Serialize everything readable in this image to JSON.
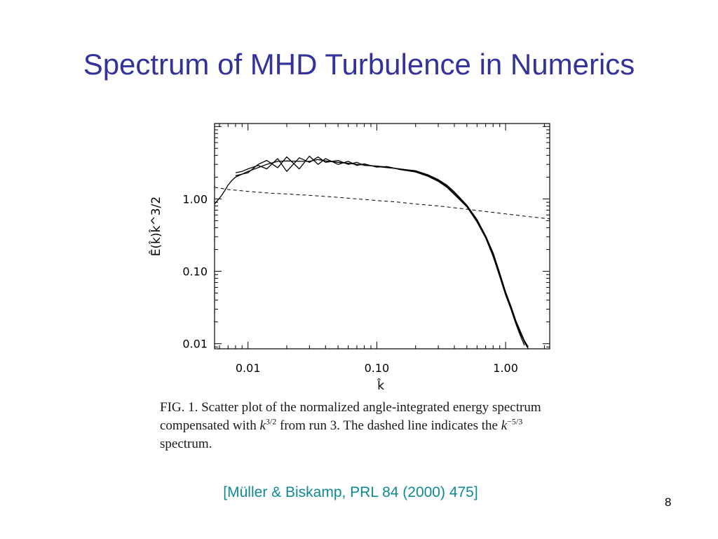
{
  "slide": {
    "title": "Spectrum of MHD Turbulence in Numerics",
    "citation": "[Müller & Biskamp, PRL 84 (2000) 475]",
    "slide_number": "8"
  },
  "caption": {
    "part1": "FIG. 1.  Scatter plot of the normalized angle-integrated energy spectrum compensated with ",
    "math1_base": "k",
    "math1_exp": "3/2",
    "part2": " from run 3.  The dashed line indicates the ",
    "math2_base": "k",
    "math2_exp": "−5/3",
    "part3": " spectrum."
  },
  "chart_data": {
    "type": "line",
    "x_scale": "log",
    "y_scale": "log",
    "xlabel": "k̂",
    "ylabel": "Ê(k̂)k̂^3/2",
    "xlim": [
      0.0055,
      2.2
    ],
    "ylim": [
      0.0085,
      11
    ],
    "x_ticks": [
      0.01,
      0.1,
      1.0
    ],
    "x_tick_labels": [
      "0.01",
      "0.10",
      "1.00"
    ],
    "y_ticks": [
      0.01,
      0.1,
      1.0
    ],
    "y_tick_labels": [
      "0.01",
      "0.10",
      "1.00"
    ],
    "grid": false,
    "series": [
      {
        "style": "solid",
        "x": [
          0.0055,
          0.0058,
          0.0062,
          0.0066,
          0.007,
          0.0075,
          0.008,
          0.009,
          0.01,
          0.012,
          0.014,
          0.017,
          0.02,
          0.025,
          0.03,
          0.035,
          0.04,
          0.05,
          0.06,
          0.07,
          0.08,
          0.1,
          0.12,
          0.15,
          0.2,
          0.25,
          0.3,
          0.35,
          0.4,
          0.5,
          0.6,
          0.7,
          0.8,
          0.9,
          1.0,
          1.1,
          1.2,
          1.3,
          1.4,
          1.5
        ],
        "y": [
          0.85,
          0.95,
          1.1,
          1.3,
          1.55,
          1.8,
          2.0,
          2.2,
          2.4,
          2.7,
          3.0,
          3.3,
          3.35,
          3.3,
          3.3,
          3.5,
          3.35,
          3.2,
          3.1,
          3.0,
          2.95,
          2.8,
          2.7,
          2.6,
          2.4,
          2.1,
          1.8,
          1.5,
          1.2,
          0.8,
          0.5,
          0.3,
          0.17,
          0.09,
          0.05,
          0.032,
          0.02,
          0.014,
          0.0105,
          0.0085
        ]
      },
      {
        "style": "solid",
        "x": [
          0.008,
          0.009,
          0.01,
          0.012,
          0.014,
          0.017,
          0.02,
          0.025,
          0.03,
          0.035,
          0.04,
          0.05,
          0.06,
          0.07,
          0.08,
          0.1,
          0.12,
          0.15,
          0.2,
          0.25,
          0.3,
          0.35,
          0.4,
          0.5,
          0.6,
          0.7,
          0.8,
          0.9,
          1.0,
          1.1,
          1.2,
          1.3,
          1.4,
          1.5
        ],
        "y": [
          2.3,
          2.4,
          2.6,
          2.9,
          2.6,
          3.6,
          2.4,
          3.7,
          3.2,
          3.8,
          3.2,
          3.4,
          3.0,
          3.2,
          2.9,
          2.85,
          2.75,
          2.6,
          2.45,
          2.15,
          1.85,
          1.55,
          1.25,
          0.82,
          0.52,
          0.31,
          0.18,
          0.095,
          0.052,
          0.033,
          0.021,
          0.015,
          0.011,
          0.009
        ]
      },
      {
        "style": "solid",
        "x": [
          0.008,
          0.009,
          0.01,
          0.012,
          0.014,
          0.017,
          0.02,
          0.025,
          0.03,
          0.035,
          0.04,
          0.05,
          0.06,
          0.07,
          0.08,
          0.1,
          0.12,
          0.15,
          0.2,
          0.25,
          0.3,
          0.35,
          0.4,
          0.5,
          0.6,
          0.7,
          0.8,
          0.9,
          1.0,
          1.1,
          1.2,
          1.3,
          1.4
        ],
        "y": [
          2.1,
          2.2,
          2.3,
          3.0,
          3.4,
          2.7,
          3.8,
          2.6,
          3.9,
          3.0,
          3.6,
          3.0,
          3.3,
          2.9,
          3.05,
          2.75,
          2.8,
          2.55,
          2.35,
          2.05,
          1.75,
          1.45,
          1.15,
          0.78,
          0.48,
          0.29,
          0.16,
          0.085,
          0.047,
          0.03,
          0.019,
          0.013,
          0.0095
        ]
      },
      {
        "style": "dashed",
        "x": [
          0.0055,
          0.007,
          0.01,
          0.015,
          0.02,
          0.03,
          0.05,
          0.07,
          0.1,
          0.15,
          0.2,
          0.3,
          0.5,
          0.7,
          1.0,
          1.5,
          2.2
        ],
        "y": [
          1.45,
          1.35,
          1.27,
          1.2,
          1.17,
          1.12,
          1.05,
          1.0,
          0.95,
          0.9,
          0.85,
          0.8,
          0.72,
          0.67,
          0.62,
          0.57,
          0.53
        ]
      }
    ]
  }
}
